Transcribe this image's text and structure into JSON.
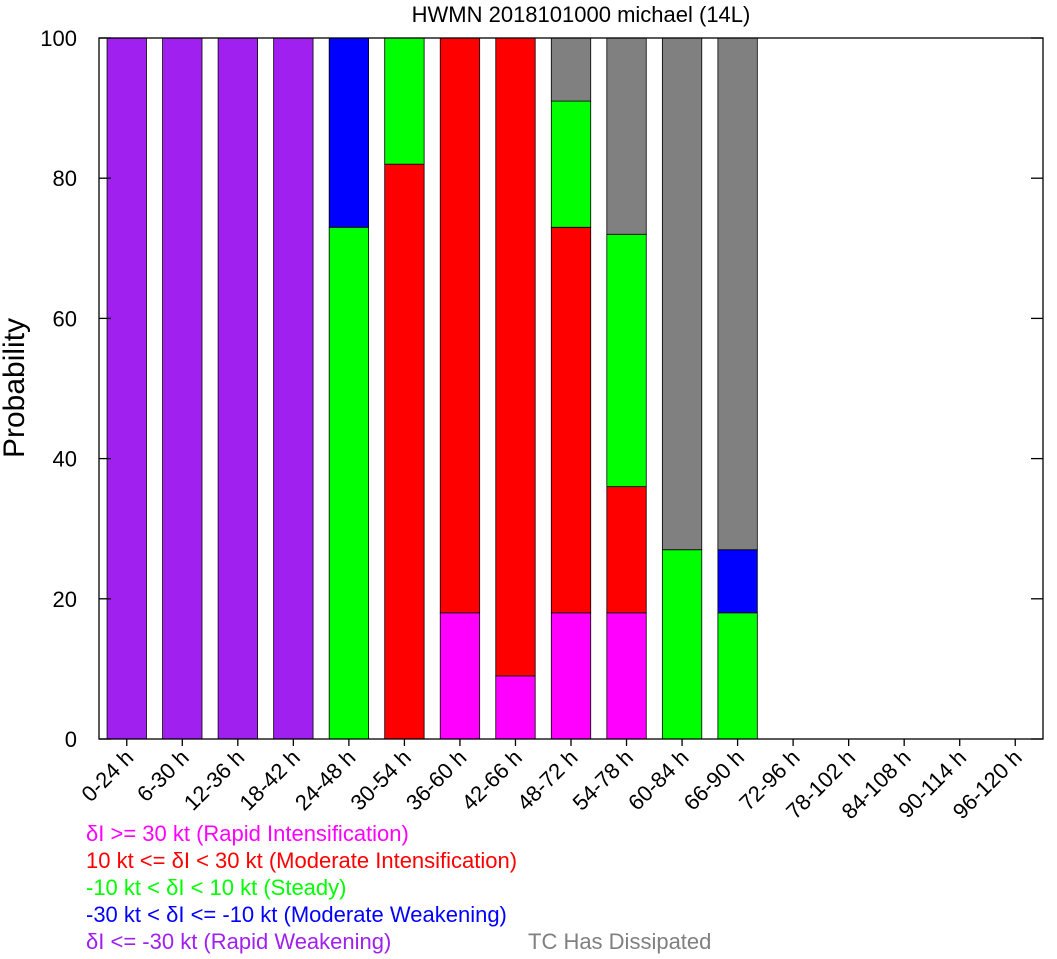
{
  "chart_data": {
    "type": "bar",
    "stacked": true,
    "title": "HWMN 2018101000 michael (14L)",
    "xlabel": "",
    "ylabel": "Probability",
    "ylim": [
      0,
      100
    ],
    "yticks": [
      0,
      20,
      40,
      60,
      80,
      100
    ],
    "grid": false,
    "legend_placement": "bottom",
    "categories": [
      "0-24 h",
      "6-30 h",
      "12-36 h",
      "18-42 h",
      "24-48 h",
      "30-54 h",
      "36-60 h",
      "42-66 h",
      "48-72 h",
      "54-78 h",
      "60-84 h",
      "66-90 h",
      "72-96 h",
      "78-102 h",
      "84-108 h",
      "90-114 h",
      "96-120 h"
    ],
    "series": [
      {
        "name": "δI <= -30 kt (Rapid Weakening)",
        "color": "#a020f0",
        "values": [
          100,
          100,
          100,
          100,
          0,
          0,
          0,
          0,
          0,
          0,
          0,
          0,
          0,
          0,
          0,
          0,
          0
        ]
      },
      {
        "name": "δI >= 30 kt (Rapid Intensification)",
        "color": "#ff00ff",
        "values": [
          0,
          0,
          0,
          0,
          0,
          0,
          18,
          9,
          18,
          18,
          0,
          0,
          0,
          0,
          0,
          0,
          0
        ]
      },
      {
        "name": "10 kt <= δI < 30 kt (Moderate Intensification)",
        "color": "#ff0000",
        "values": [
          0,
          0,
          0,
          0,
          0,
          82,
          82,
          91,
          55,
          18,
          0,
          0,
          0,
          0,
          0,
          0,
          0
        ]
      },
      {
        "name": "-10 kt < δI < 10 kt (Steady)",
        "color": "#00ff00",
        "values": [
          0,
          0,
          0,
          0,
          73,
          18,
          0,
          0,
          18,
          36,
          27,
          18,
          0,
          0,
          0,
          0,
          0
        ]
      },
      {
        "name": "-30 kt < δI <= -10 kt (Moderate Weakening)",
        "color": "#0000ff",
        "values": [
          0,
          0,
          0,
          0,
          27,
          0,
          0,
          0,
          0,
          0,
          0,
          9,
          0,
          0,
          0,
          0,
          0
        ]
      },
      {
        "name": "TC Has Dissipated",
        "color": "#808080",
        "values": [
          0,
          0,
          0,
          0,
          0,
          0,
          0,
          0,
          9,
          28,
          73,
          73,
          0,
          0,
          0,
          0,
          0
        ]
      }
    ]
  },
  "legend": {
    "ri": {
      "label": "δI >= 30 kt (Rapid Intensification)",
      "color": "#ff00ff"
    },
    "mi": {
      "label": "10 kt <= δI < 30 kt (Moderate Intensification)",
      "color": "#ff0000"
    },
    "steady": {
      "label": "-10 kt < δI < 10 kt (Steady)",
      "color": "#00ff00"
    },
    "mw": {
      "label": "-30 kt < δI <= -10 kt (Moderate Weakening)",
      "color": "#0000ff"
    },
    "rw": {
      "label": "δI <= -30 kt (Rapid Weakening)",
      "color": "#a020f0"
    },
    "dissipated": {
      "label": "TC Has Dissipated",
      "color": "#808080"
    }
  }
}
